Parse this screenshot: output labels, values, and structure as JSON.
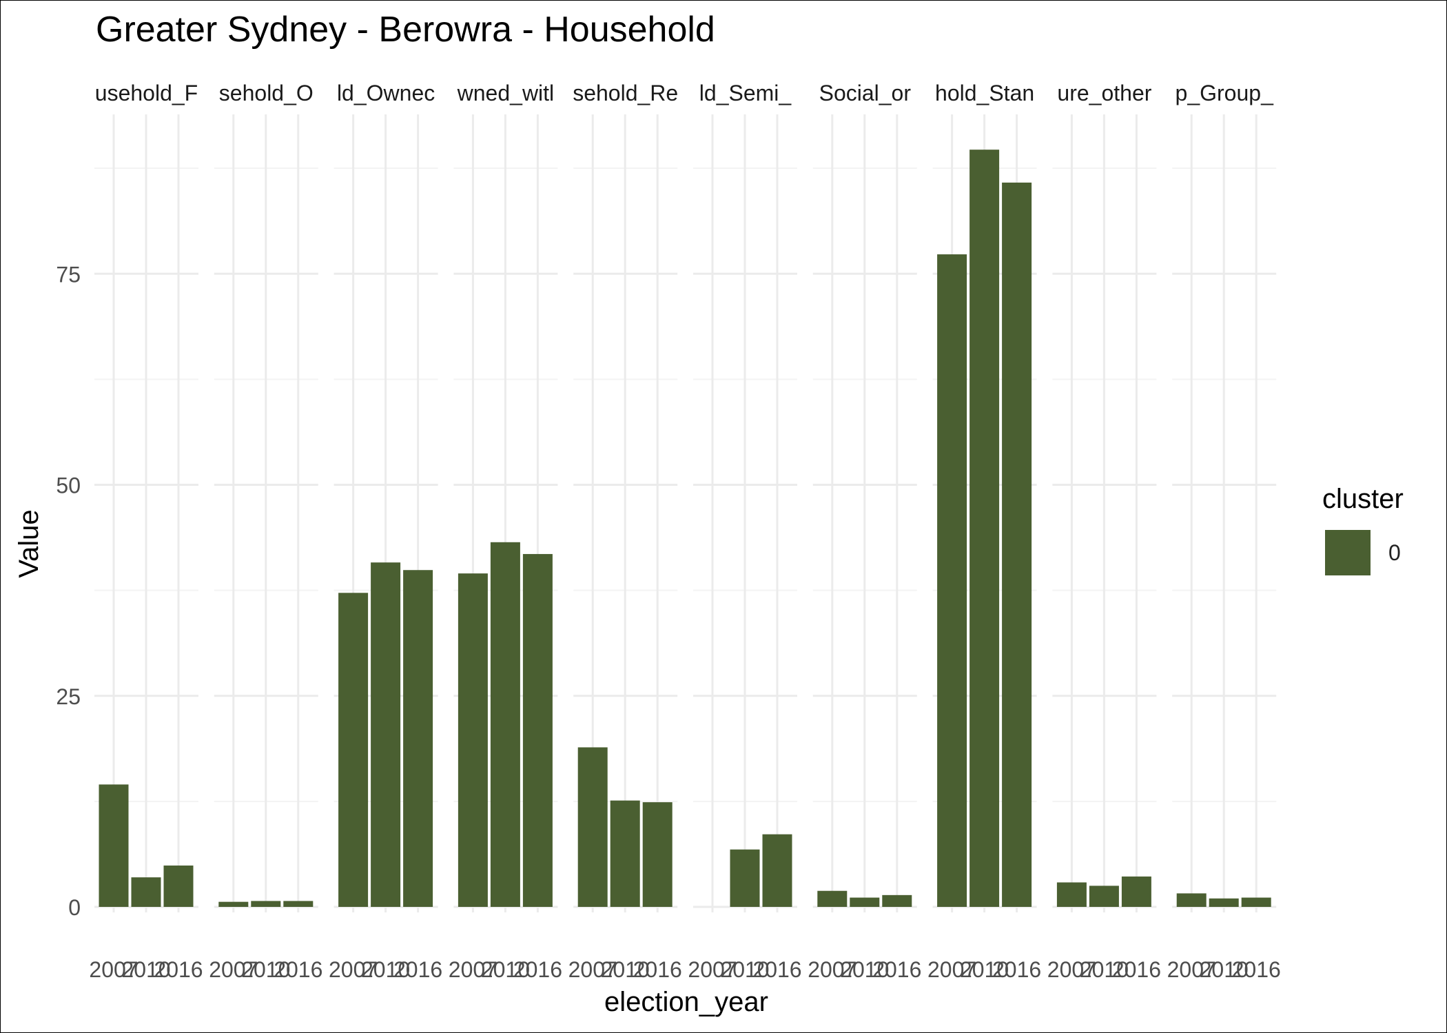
{
  "chart_data": {
    "type": "bar",
    "title": "Greater Sydney - Berowra - Household",
    "xlabel": "election_year",
    "ylabel": "Value",
    "ylim": [
      0,
      94
    ],
    "y_ticks": [
      0,
      25,
      50,
      75
    ],
    "x_ticks": [
      "2007",
      "2010",
      "2016"
    ],
    "grid": true,
    "legend": {
      "title": "cluster",
      "placement": "right",
      "entries": [
        {
          "label": "0",
          "color": "#4a5f31"
        }
      ]
    },
    "bar_color": "#4a5f31",
    "facets": [
      {
        "label": "usehold_F",
        "values": [
          14.5,
          3.5,
          4.9
        ]
      },
      {
        "label": "sehold_O",
        "values": [
          0.6,
          0.7,
          0.7
        ]
      },
      {
        "label": "ld_Ownec",
        "values": [
          37.2,
          40.8,
          39.9
        ]
      },
      {
        "label": "wned_witl",
        "values": [
          39.5,
          43.2,
          41.8
        ]
      },
      {
        "label": "sehold_Re",
        "values": [
          18.9,
          12.6,
          12.4
        ]
      },
      {
        "label": "ld_Semi_",
        "values": [
          0,
          6.8,
          8.6
        ]
      },
      {
        "label": "Social_or",
        "values": [
          1.9,
          1.1,
          1.4
        ]
      },
      {
        "label": "hold_Stan",
        "values": [
          77.3,
          89.7,
          85.8
        ]
      },
      {
        "label": "ure_other",
        "values": [
          2.9,
          2.5,
          3.6
        ]
      },
      {
        "label": "p_Group_",
        "values": [
          1.6,
          1.0,
          1.1
        ]
      }
    ]
  }
}
